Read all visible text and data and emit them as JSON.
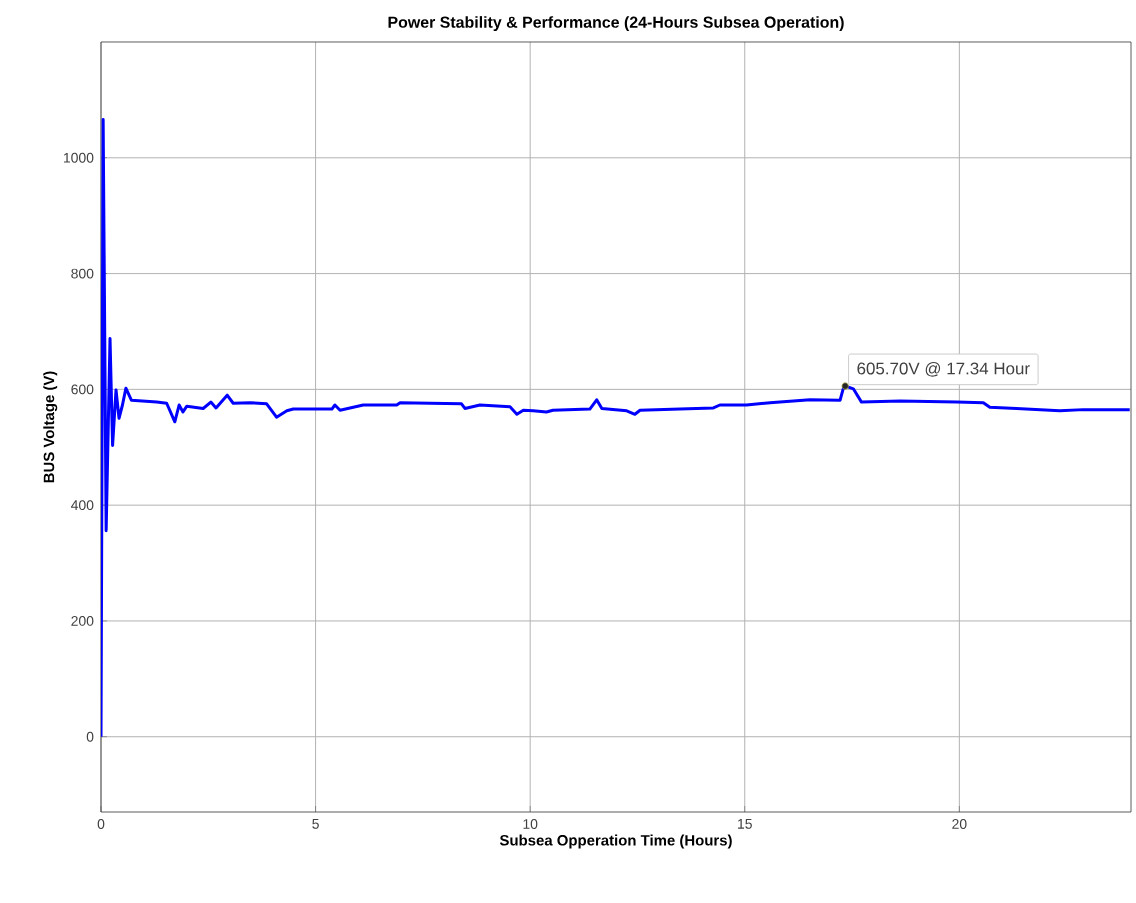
{
  "chart_data": {
    "type": "line",
    "title": "Power Stability & Performance (24-Hours Subsea Operation)",
    "xlabel": "Subsea Opperation Time (Hours)",
    "ylabel": "BUS Voltage (V)",
    "x": [
      0,
      0.05,
      0.12,
      0.21,
      0.27,
      0.35,
      0.42,
      0.5,
      0.58,
      0.71,
      1.3,
      1.53,
      1.72,
      1.82,
      1.91,
      2.0,
      2.38,
      2.56,
      2.68,
      2.94,
      3.08,
      3.47,
      3.86,
      4.09,
      4.33,
      4.48,
      5.38,
      5.45,
      5.57,
      6.11,
      6.89,
      6.97,
      7.67,
      8.4,
      8.48,
      8.83,
      9.53,
      9.69,
      9.84,
      10.07,
      10.38,
      10.53,
      11.39,
      11.55,
      11.67,
      12.25,
      12.44,
      12.56,
      13.49,
      14.27,
      14.42,
      15.04,
      15.59,
      16.52,
      17.22,
      17.29,
      17.34,
      17.53,
      17.72,
      18.62,
      19.94,
      20.56,
      20.71,
      21.33,
      22.34,
      22.89,
      23.97
    ],
    "series": [
      {
        "color": "#0000ff",
        "values": [
          0,
          1066,
          356,
          688,
          503,
          599,
          550,
          573,
          602,
          581,
          578,
          576,
          544,
          573,
          561,
          571,
          567,
          578,
          568,
          590,
          576,
          577,
          575,
          552,
          563,
          566,
          566,
          573,
          564,
          573,
          573,
          577,
          576,
          575,
          567,
          573,
          570,
          557,
          564,
          563,
          561,
          564,
          566,
          582,
          567,
          563,
          557,
          564,
          566,
          568,
          573,
          573,
          577,
          582,
          581,
          600,
          606,
          601,
          578,
          580,
          578,
          577,
          569,
          567,
          563,
          565,
          565
        ]
      }
    ],
    "xlim": [
      0,
      24
    ],
    "ylim": [
      -130,
      1200
    ],
    "xticks": [
      0,
      5,
      10,
      15,
      20
    ],
    "yticks": [
      0,
      200,
      400,
      600,
      800,
      1000
    ],
    "grid": true,
    "marker": "none",
    "line_style": "solid",
    "annotations": [
      {
        "text": "605.70V @ 17.34 Hour",
        "x": 17.34,
        "y": 605.7
      }
    ]
  }
}
